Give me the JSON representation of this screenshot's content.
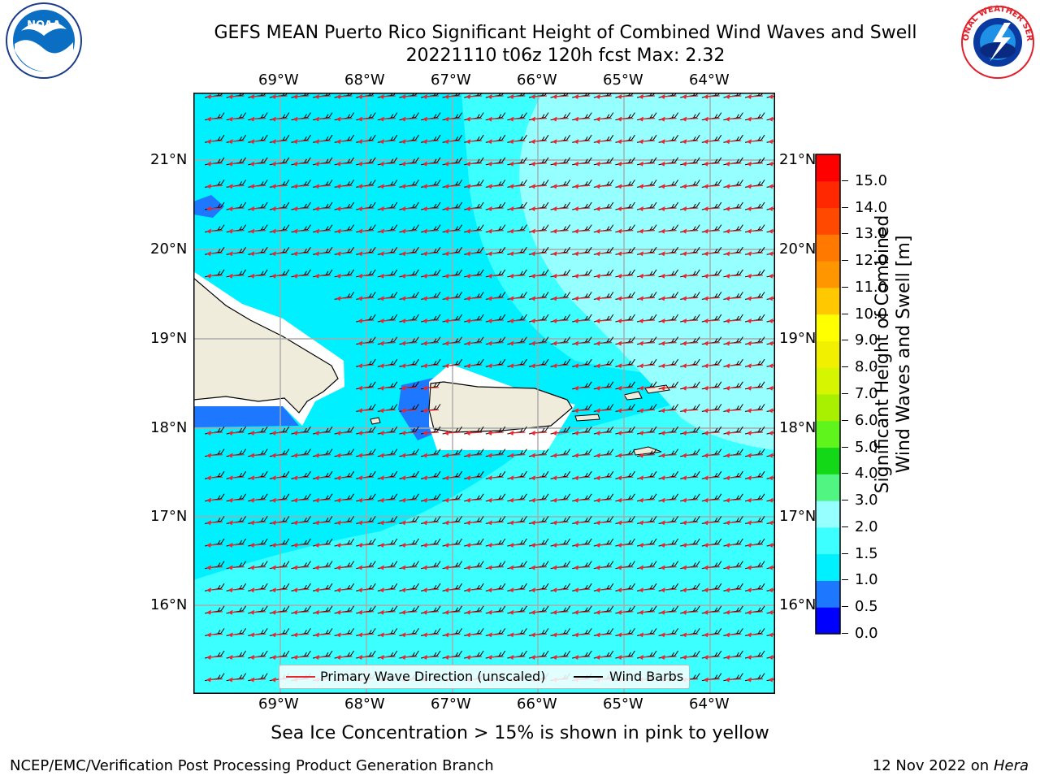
{
  "header": {
    "title_line1": "GEFS MEAN Puerto Rico Significant Height of Combined Wind Waves and Swell",
    "title_line2": "20221110 t06z 120h fcst   Max: 2.32"
  },
  "logos": {
    "left": "NOAA",
    "right_text": "NATIONAL WEATHER SERVICE"
  },
  "map": {
    "lon_labels": [
      "69°W",
      "68°W",
      "67°W",
      "66°W",
      "65°W",
      "64°W"
    ],
    "lat_labels": [
      "21°N",
      "20°N",
      "19°N",
      "18°N",
      "17°N",
      "16°N"
    ],
    "legend": {
      "wave_label": "Primary Wave Direction (unscaled)",
      "barb_label": "Wind Barbs",
      "wave_color": "#e8262e",
      "barb_color": "#000000"
    }
  },
  "colorbar": {
    "title": "Significant Height of Combined Wind Waves and Swell [m]",
    "title_line1": "Significant Height of Combined",
    "title_line2": "Wind Waves and Swell [m]",
    "ticks": [
      "0.0",
      "0.5",
      "1.0",
      "1.5",
      "2.0",
      "3.0",
      "4.0",
      "5.0",
      "6.0",
      "7.0",
      "8.0",
      "9.0",
      "10.0",
      "11.0",
      "12.0",
      "13.0",
      "14.0",
      "15.0"
    ],
    "colors": [
      "#0000ff",
      "#1e78ff",
      "#00f0ff",
      "#3cffff",
      "#96ffff",
      "#50f582",
      "#12d818",
      "#5ff51c",
      "#a8f000",
      "#d6f500",
      "#f0f000",
      "#ffff00",
      "#ffc800",
      "#ff9600",
      "#ff7800",
      "#ff4800",
      "#ff2800",
      "#ff0000"
    ]
  },
  "caption": "Sea Ice Concentration > 15% is shown in pink to yellow",
  "footer": {
    "left": "NCEP/EMC/Verification Post Processing Product Generation Branch",
    "right_date": "12 Nov 2022 on",
    "right_host": "Hera"
  }
}
